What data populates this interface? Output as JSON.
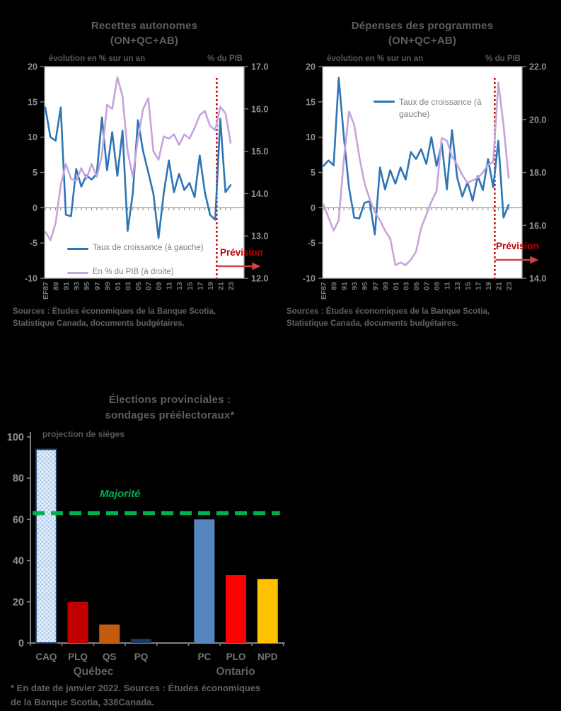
{
  "charts": {
    "recettes": {
      "title1": "Recettes autonomes",
      "title2": "(ON+QC+AB)",
      "axis_left_caption": "évolution en % sur un an",
      "axis_right_caption": "% du PIB",
      "legend1": "Taux de croissance (à gauche)",
      "legend2": "En % du PIB (à droite)",
      "prevision": "Prévision",
      "sources1": "Sources : Études économiques de la Banque Scotia,",
      "sources2": "Statistique Canada, documents budgétaires."
    },
    "depenses": {
      "title1": "Dépenses des programmes",
      "title2": "(ON+QC+AB)",
      "axis_left_caption": "évolution en % sur un an",
      "axis_right_caption": "% du PIB",
      "legend1": "Taux de croissance (à gauche)",
      "prevision": "Prévision",
      "sources1": "Sources : Études économiques de la Banque Scotia,",
      "sources2": "Statistique Canada, documents budgétaires."
    },
    "elections": {
      "title1": "Élections provinciales :",
      "title2": "sondages préélectoraux*",
      "axis_caption": "projection de sièges",
      "majority_label": "Majorité",
      "group_labels": [
        "Québec",
        "Ontario"
      ],
      "footnote1": "* En date de janvier 2022. Sources : Études économiques",
      "footnote2": "de la Banque Scotia, 338Canada."
    }
  },
  "chart_data": [
    {
      "id": "recettes",
      "type": "line",
      "title": "Recettes autonomes (ON+QC+AB)",
      "x_start_year": 1987,
      "x_end_year": 2023,
      "x_tick_labels": [
        "EF87",
        "89",
        "91",
        "93",
        "95",
        "97",
        "99",
        "01",
        "03",
        "05",
        "07",
        "09",
        "11",
        "13",
        "15",
        "17",
        "19",
        "21",
        "23"
      ],
      "axis_left": {
        "label": "évolution en % sur un an",
        "min": -10,
        "max": 20,
        "step": 5,
        "decimals": 0
      },
      "axis_right": {
        "label": "% du PIB",
        "min": 12,
        "max": 17,
        "step": 1,
        "decimals": 1
      },
      "prevision_start_year": 2020.3,
      "grid": false,
      "legend_position": "bottom-left-inside",
      "series": [
        {
          "name": "Taux de croissance (à gauche)",
          "axis": "left",
          "color": "#2E75B6",
          "values": [
            14.2,
            10.0,
            9.5,
            14.2,
            -1.0,
            -1.2,
            5.5,
            3.0,
            4.6,
            4.0,
            4.8,
            12.8,
            5.3,
            10.7,
            4.5,
            10.9,
            -3.3,
            2.0,
            12.4,
            8.0,
            5.0,
            2.0,
            -4.3,
            2.0,
            6.7,
            2.2,
            4.8,
            2.5,
            3.5,
            1.5,
            7.4,
            2.2,
            -1.0,
            -1.7,
            12.6,
            2.2,
            3.2
          ]
        },
        {
          "name": "En % du PIB (à droite)",
          "axis": "right",
          "color": "#C7A3DB",
          "values": [
            13.1,
            12.9,
            13.3,
            14.2,
            14.7,
            14.35,
            14.3,
            14.6,
            14.35,
            14.7,
            14.4,
            14.9,
            16.1,
            16.0,
            16.75,
            16.3,
            15.0,
            14.4,
            15.3,
            16.0,
            16.25,
            15.0,
            14.8,
            15.35,
            15.3,
            15.4,
            15.15,
            15.4,
            15.3,
            15.55,
            15.85,
            15.95,
            15.6,
            15.5,
            16.05,
            15.9,
            15.2
          ]
        }
      ]
    },
    {
      "id": "depenses",
      "type": "line",
      "title": "Dépenses des programmes (ON+QC+AB)",
      "x_start_year": 1987,
      "x_end_year": 2023,
      "x_tick_labels": [
        "EF87",
        "89",
        "91",
        "93",
        "95",
        "97",
        "99",
        "01",
        "03",
        "05",
        "07",
        "09",
        "11",
        "13",
        "15",
        "17",
        "19",
        "21",
        "23"
      ],
      "axis_left": {
        "label": "évolution en % sur un an",
        "min": -10,
        "max": 20,
        "step": 5,
        "decimals": 0
      },
      "axis_right": {
        "label": "% du PIB",
        "min": 14,
        "max": 22,
        "step": 2,
        "decimals": 1
      },
      "prevision_start_year": 2020.3,
      "grid": false,
      "legend_position": "top-middle-inside",
      "series": [
        {
          "name": "Taux de croissance (à gauche)",
          "axis": "left",
          "color": "#2E75B6",
          "values": [
            5.9,
            6.7,
            6.0,
            18.4,
            10.0,
            2.8,
            -1.4,
            -1.5,
            0.7,
            0.9,
            -3.8,
            5.7,
            2.6,
            5.3,
            3.4,
            5.7,
            4.0,
            7.9,
            6.9,
            8.3,
            6.2,
            10.0,
            5.9,
            9.1,
            2.6,
            11.0,
            4.3,
            1.6,
            3.6,
            1.0,
            4.5,
            2.5,
            6.9,
            2.9,
            9.5,
            -1.4,
            0.4
          ]
        },
        {
          "name": "En % du PIB (à droite)",
          "axis": "right",
          "color": "#C7A3DB",
          "values": [
            16.8,
            16.3,
            15.8,
            16.2,
            18.5,
            20.3,
            19.8,
            18.6,
            17.6,
            17.0,
            16.5,
            16.2,
            15.8,
            15.5,
            14.5,
            14.6,
            14.5,
            14.7,
            15.0,
            15.9,
            16.4,
            16.9,
            17.3,
            19.3,
            19.2,
            18.6,
            18.3,
            17.9,
            17.6,
            17.7,
            17.8,
            18.0,
            18.3,
            18.4,
            21.4,
            19.8,
            17.8
          ]
        }
      ]
    },
    {
      "id": "elections",
      "type": "bar",
      "title": "Élections provinciales : sondages préélectoraux*",
      "ylabel": "projection de sièges",
      "categories": [
        "CAQ",
        "PLQ",
        "QS",
        "PQ",
        "PC",
        "PLO",
        "NPD"
      ],
      "values": [
        94,
        20,
        9,
        2,
        60,
        33,
        31
      ],
      "bar_colors": [
        "caq-pattern",
        "#C00000",
        "#C55A11",
        "#1F3864",
        "#5586BD",
        "#FF0000",
        "#FFC000"
      ],
      "caq_pattern": {
        "base": "#A7C8EA",
        "hatch": "#EAF2FA",
        "border": "#1F3864"
      },
      "groups": [
        {
          "label": "Québec",
          "from": 0,
          "to": 3
        },
        {
          "label": "Ontario",
          "from": 4,
          "to": 6
        }
      ],
      "majority": {
        "label": "Majorité",
        "value": 63,
        "color": "#00B050"
      },
      "ylim": [
        0,
        100
      ],
      "ytick_step": 20,
      "grid": false
    }
  ],
  "style_colors": {
    "blue_line": "#2E75B6",
    "purple_line": "#C7A3DB",
    "prevision_red": "#C00000",
    "majority_green": "#00B050",
    "axis_gray": "#808080"
  }
}
